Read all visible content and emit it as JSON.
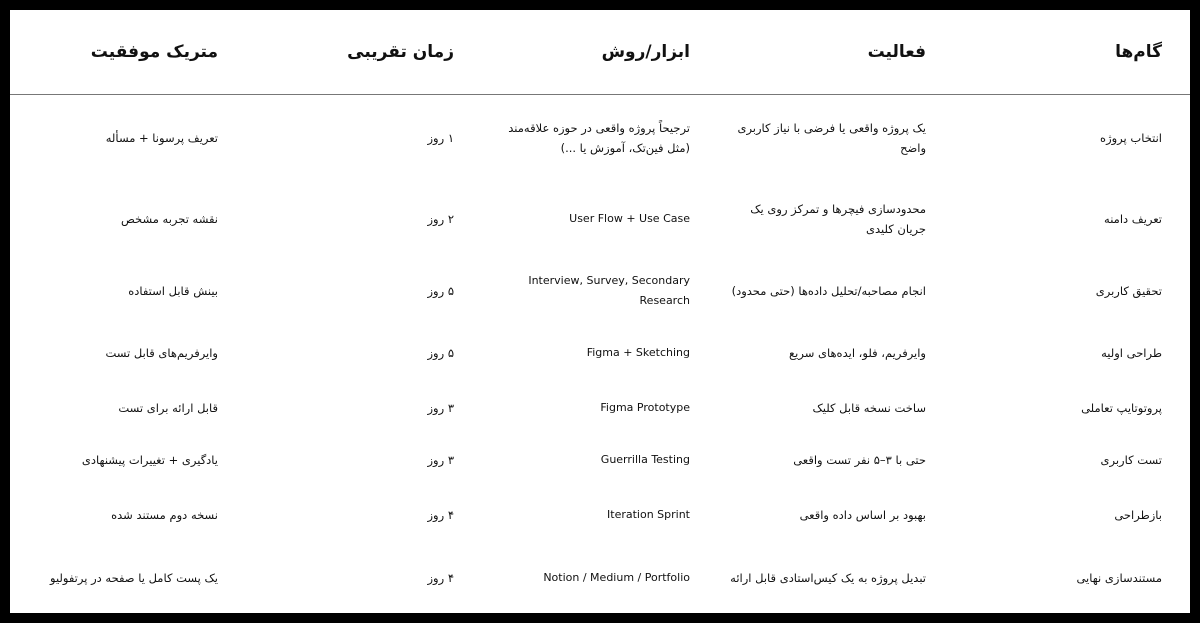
{
  "headers": [
    "گام‌ها",
    "فعالیت",
    "ابزار/روش",
    "زمان تقریبی",
    "متریک موفقیت"
  ],
  "rows": [
    {
      "step": "انتخاب پروژه",
      "activity": "یک پروژه واقعی یا فرضی با نیاز کاربری واضح",
      "tool": "ترجیحاً پروژه واقعی در حوزه علاقه‌مند (مثل فین‌تک، آموزش یا ...)",
      "time": "۱ روز",
      "metric": "تعریف پرسونا + مسأله"
    },
    {
      "step": "تعریف دامنه",
      "activity": "محدودسازی فیچرها و تمرکز روی یک جریان کلیدی",
      "tool": "User Flow + Use Case",
      "time": "۲ روز",
      "metric": "نقشه تجربه مشخص"
    },
    {
      "step": "تحقیق کاربری",
      "activity": "انجام مصاحبه/تحلیل داده‌ها (حتی محدود)",
      "tool": "Interview, Survey, Secondary Research",
      "time": "۵ روز",
      "metric": "بینش قابل استفاده"
    },
    {
      "step": "طراحی اولیه",
      "activity": "وایرفریم، فلو، ایده‌های سریع",
      "tool": "Figma + Sketching",
      "time": "۵ روز",
      "metric": "وایرفریم‌های قابل تست"
    },
    {
      "step": "پروتوتایپ تعاملی",
      "activity": "ساخت نسخه قابل کلیک",
      "tool": "Figma Prototype",
      "time": "۳ روز",
      "metric": "قابل ارائه برای تست"
    },
    {
      "step": "تست کاربری",
      "activity": "حتی با ۳–۵ نفر تست واقعی",
      "tool": "Guerrilla Testing",
      "time": "۳ روز",
      "metric": "یادگیری + تغییرات پیشنهادی"
    },
    {
      "step": "بازطراحی",
      "activity": "بهبود بر اساس داده واقعی",
      "tool": "Iteration Sprint",
      "time": "۴ روز",
      "metric": "نسخه دوم مستند شده"
    },
    {
      "step": "مستندسازی نهایی",
      "activity": "تبدیل پروژه به یک کیس‌استادی قابل ارائه",
      "tool": "Notion / Medium / Portfolio",
      "time": "۴ روز",
      "metric": "یک پست کامل یا صفحه در پرتفولیو"
    }
  ]
}
